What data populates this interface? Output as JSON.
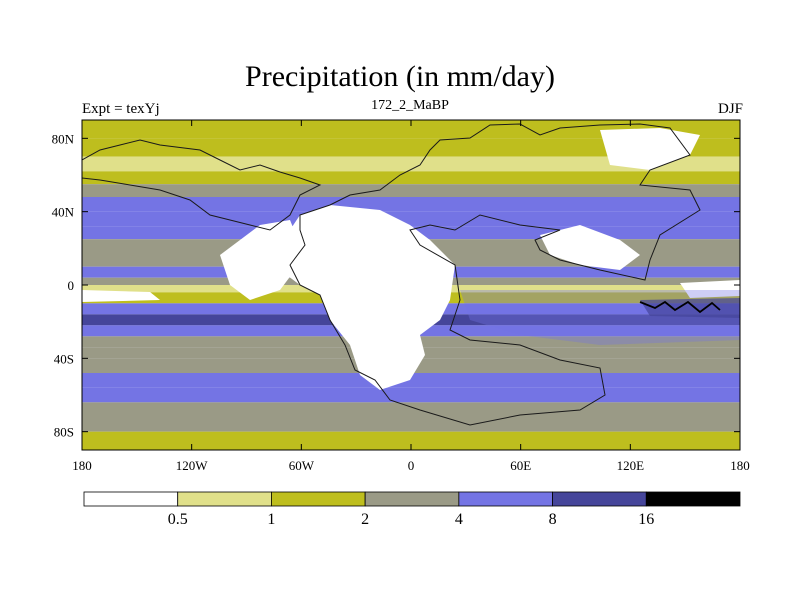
{
  "chart_data": {
    "type": "heatmap",
    "title": "Precipitation (in mm/day)",
    "left_subtitle": "Expt = texYj",
    "center_subtitle": "172_2_MaBP",
    "right_subtitle": "DJF",
    "x_range": [
      -180,
      180
    ],
    "y_range": [
      -90,
      90
    ],
    "x_ticks": [
      {
        "value": -180,
        "label": "180"
      },
      {
        "value": -120,
        "label": "120W"
      },
      {
        "value": -60,
        "label": "60W"
      },
      {
        "value": 0,
        "label": "0"
      },
      {
        "value": 60,
        "label": "60E"
      },
      {
        "value": 120,
        "label": "120E"
      },
      {
        "value": 180,
        "label": "180"
      }
    ],
    "y_ticks": [
      {
        "value": 80,
        "label": "80N"
      },
      {
        "value": 40,
        "label": "40N"
      },
      {
        "value": 0,
        "label": "0"
      },
      {
        "value": -40,
        "label": "40S"
      },
      {
        "value": -80,
        "label": "80S"
      }
    ],
    "legend": {
      "boundaries": [
        "0.5",
        "1",
        "2",
        "4",
        "8",
        "16"
      ],
      "colors": [
        "#ffffff",
        "#e0e08a",
        "#bebe1e",
        "#9a9a86",
        "#7474e4",
        "#45459a",
        "#000000"
      ]
    },
    "zonal_profile_by_lat": [
      {
        "lat": 90,
        "value": 1.5
      },
      {
        "lat": 80,
        "value": 1.2
      },
      {
        "lat": 70,
        "value": 0.8
      },
      {
        "lat": 62,
        "value": 1.5
      },
      {
        "lat": 55,
        "value": 3.0
      },
      {
        "lat": 48,
        "value": 5.0
      },
      {
        "lat": 40,
        "value": 6.0
      },
      {
        "lat": 32,
        "value": 4.0
      },
      {
        "lat": 25,
        "value": 2.0
      },
      {
        "lat": 18,
        "value": 3.5
      },
      {
        "lat": 10,
        "value": 7.5
      },
      {
        "lat": 4,
        "value": 3.0
      },
      {
        "lat": 0,
        "value": 0.7
      },
      {
        "lat": -4,
        "value": 1.5
      },
      {
        "lat": -10,
        "value": 4.0
      },
      {
        "lat": -16,
        "value": 8.5
      },
      {
        "lat": -22,
        "value": 6.0
      },
      {
        "lat": -28,
        "value": 3.0
      },
      {
        "lat": -34,
        "value": 2.5
      },
      {
        "lat": -40,
        "value": 3.5
      },
      {
        "lat": -48,
        "value": 5.0
      },
      {
        "lat": -56,
        "value": 5.0
      },
      {
        "lat": -64,
        "value": 3.5
      },
      {
        "lat": -72,
        "value": 2.0
      },
      {
        "lat": -80,
        "value": 1.3
      },
      {
        "lat": -90,
        "value": 0.8
      }
    ],
    "grid": false
  }
}
